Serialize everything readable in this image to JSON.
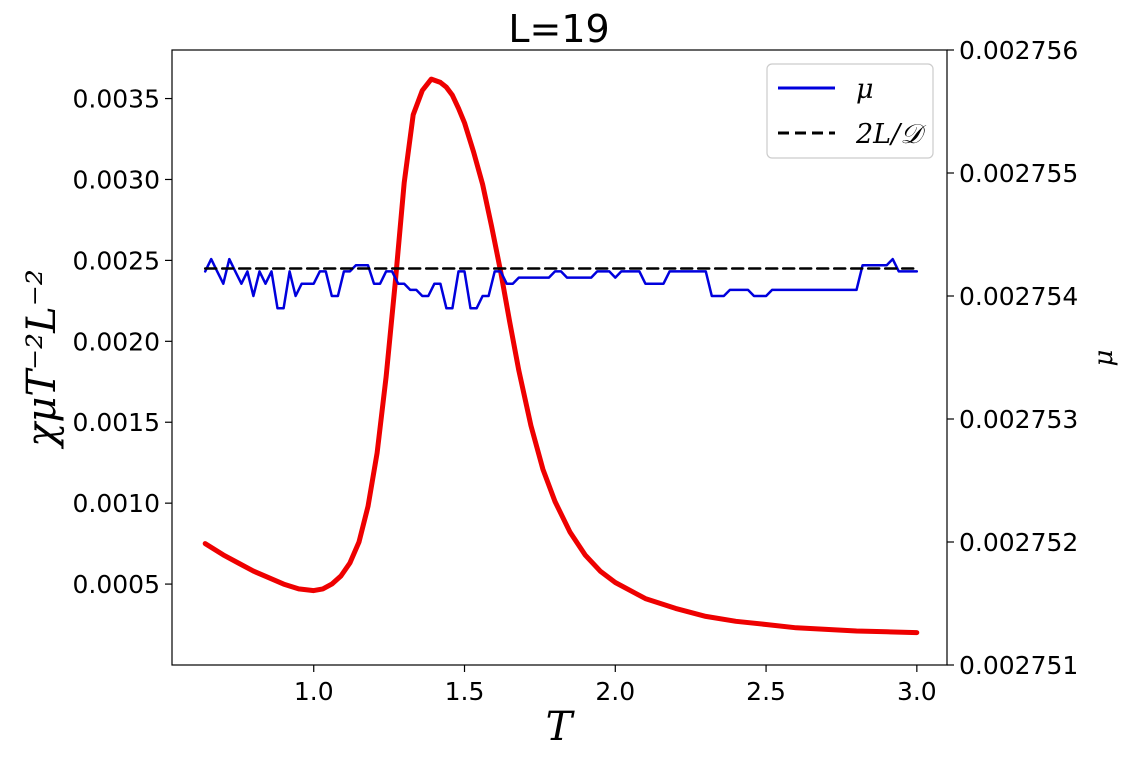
{
  "chart_data": {
    "type": "line",
    "title": "L=19",
    "xlabel": "T",
    "ylabel_left": "χμT⁻²L⁻²",
    "ylabel_right": "μ",
    "xlim": [
      0.53,
      3.1
    ],
    "ylim_left": [
      0.0,
      0.0038
    ],
    "ylim_right": [
      0.002751,
      0.002756
    ],
    "xticks": [
      1.0,
      1.5,
      2.0,
      2.5,
      3.0
    ],
    "xtick_labels": [
      "1.0",
      "1.5",
      "2.0",
      "2.5",
      "3.0"
    ],
    "yticks_left": [
      0.0005,
      0.001,
      0.0015,
      0.002,
      0.0025,
      0.003,
      0.0035
    ],
    "ytick_labels_left": [
      "0.0005",
      "0.0010",
      "0.0015",
      "0.0020",
      "0.0025",
      "0.0030",
      "0.0035"
    ],
    "yticks_right": [
      0.002751,
      0.002752,
      0.002753,
      0.002754,
      0.002755,
      0.002756
    ],
    "ytick_labels_right": [
      "0.002751",
      "0.002752",
      "0.002753",
      "0.002754",
      "0.002755",
      "0.002756"
    ],
    "grid": false,
    "legend_position": "top-right",
    "colors": {
      "chi": "#ee0000",
      "mu": "#0000dd",
      "ref": "#000000"
    },
    "series": [
      {
        "name": "",
        "axis": "left",
        "style": "solid-thick",
        "x": [
          0.64,
          0.7,
          0.75,
          0.8,
          0.85,
          0.9,
          0.95,
          1.0,
          1.03,
          1.06,
          1.09,
          1.12,
          1.15,
          1.18,
          1.21,
          1.24,
          1.27,
          1.3,
          1.33,
          1.36,
          1.39,
          1.42,
          1.44,
          1.46,
          1.48,
          1.5,
          1.53,
          1.56,
          1.59,
          1.62,
          1.65,
          1.68,
          1.72,
          1.76,
          1.8,
          1.85,
          1.9,
          1.95,
          2.0,
          2.1,
          2.2,
          2.3,
          2.4,
          2.5,
          2.6,
          2.7,
          2.8,
          2.9,
          3.0
        ],
        "values": [
          0.00075,
          0.00068,
          0.00063,
          0.00058,
          0.00054,
          0.0005,
          0.00047,
          0.00046,
          0.00047,
          0.0005,
          0.00055,
          0.00063,
          0.00076,
          0.00098,
          0.00131,
          0.00178,
          0.00236,
          0.00298,
          0.0034,
          0.00355,
          0.00362,
          0.0036,
          0.00357,
          0.00352,
          0.00344,
          0.00335,
          0.00317,
          0.00297,
          0.00271,
          0.00243,
          0.00212,
          0.00182,
          0.00148,
          0.00121,
          0.00101,
          0.00082,
          0.00068,
          0.00058,
          0.00051,
          0.00041,
          0.00035,
          0.0003,
          0.00027,
          0.00025,
          0.00023,
          0.00022,
          0.00021,
          0.000205,
          0.0002
        ]
      },
      {
        "name": "μ",
        "axis": "right",
        "style": "solid",
        "x": [
          0.64,
          0.66,
          0.68,
          0.7,
          0.72,
          0.74,
          0.76,
          0.78,
          0.8,
          0.82,
          0.84,
          0.86,
          0.88,
          0.9,
          0.92,
          0.94,
          0.96,
          0.98,
          1.0,
          1.02,
          1.04,
          1.06,
          1.08,
          1.1,
          1.12,
          1.14,
          1.16,
          1.18,
          1.2,
          1.22,
          1.24,
          1.26,
          1.28,
          1.3,
          1.32,
          1.34,
          1.36,
          1.38,
          1.4,
          1.42,
          1.44,
          1.46,
          1.48,
          1.5,
          1.52,
          1.54,
          1.56,
          1.58,
          1.6,
          1.62,
          1.64,
          1.66,
          1.68,
          1.7,
          1.72,
          1.74,
          1.76,
          1.78,
          1.8,
          1.82,
          1.84,
          1.86,
          1.88,
          1.9,
          1.92,
          1.94,
          1.96,
          1.98,
          2.0,
          2.02,
          2.04,
          2.06,
          2.08,
          2.1,
          2.12,
          2.14,
          2.16,
          2.18,
          2.2,
          2.22,
          2.24,
          2.26,
          2.28,
          2.3,
          2.32,
          2.34,
          2.36,
          2.38,
          2.4,
          2.42,
          2.44,
          2.46,
          2.48,
          2.5,
          2.52,
          2.54,
          2.56,
          2.58,
          2.6,
          2.62,
          2.64,
          2.66,
          2.68,
          2.7,
          2.72,
          2.74,
          2.76,
          2.78,
          2.8,
          2.82,
          2.84,
          2.86,
          2.88,
          2.9,
          2.92,
          2.94,
          2.96,
          2.98,
          3.0
        ],
        "values": [
          0.0027542,
          0.0027543,
          0.0027542,
          0.0027541,
          0.0027543,
          0.0027542,
          0.0027541,
          0.0027542,
          0.002754,
          0.0027542,
          0.0027541,
          0.0027542,
          0.0027539,
          0.0027539,
          0.0027542,
          0.002754,
          0.0027541,
          0.0027541,
          0.0027541,
          0.0027542,
          0.0027542,
          0.002754,
          0.002754,
          0.0027542,
          0.0027542,
          0.00275425,
          0.00275425,
          0.00275425,
          0.0027541,
          0.0027541,
          0.0027542,
          0.0027542,
          0.0027541,
          0.0027541,
          0.00275405,
          0.00275405,
          0.002754,
          0.002754,
          0.0027541,
          0.0027541,
          0.0027539,
          0.0027539,
          0.0027542,
          0.0027542,
          0.0027539,
          0.0027539,
          0.002754,
          0.002754,
          0.0027542,
          0.0027542,
          0.0027541,
          0.0027541,
          0.00275415,
          0.00275415,
          0.00275415,
          0.00275415,
          0.00275415,
          0.00275415,
          0.0027542,
          0.0027542,
          0.00275415,
          0.00275415,
          0.00275415,
          0.00275415,
          0.00275415,
          0.0027542,
          0.0027542,
          0.0027542,
          0.00275415,
          0.0027542,
          0.0027542,
          0.0027542,
          0.0027542,
          0.0027541,
          0.0027541,
          0.0027541,
          0.0027541,
          0.0027542,
          0.0027542,
          0.0027542,
          0.0027542,
          0.0027542,
          0.0027542,
          0.0027542,
          0.002754,
          0.002754,
          0.002754,
          0.00275405,
          0.00275405,
          0.00275405,
          0.00275405,
          0.002754,
          0.002754,
          0.002754,
          0.00275405,
          0.00275405,
          0.00275405,
          0.00275405,
          0.00275405,
          0.00275405,
          0.00275405,
          0.00275405,
          0.00275405,
          0.00275405,
          0.00275405,
          0.00275405,
          0.00275405,
          0.00275405,
          0.00275405,
          0.00275425,
          0.00275425,
          0.00275425,
          0.00275425,
          0.00275425,
          0.0027543,
          0.0027542,
          0.0027542,
          0.0027542,
          0.0027542
        ]
      },
      {
        "name": "2L/𝒟",
        "axis": "left",
        "style": "dashed",
        "x": [
          0.64,
          3.0
        ],
        "values": [
          0.00245,
          0.00245
        ]
      }
    ]
  }
}
